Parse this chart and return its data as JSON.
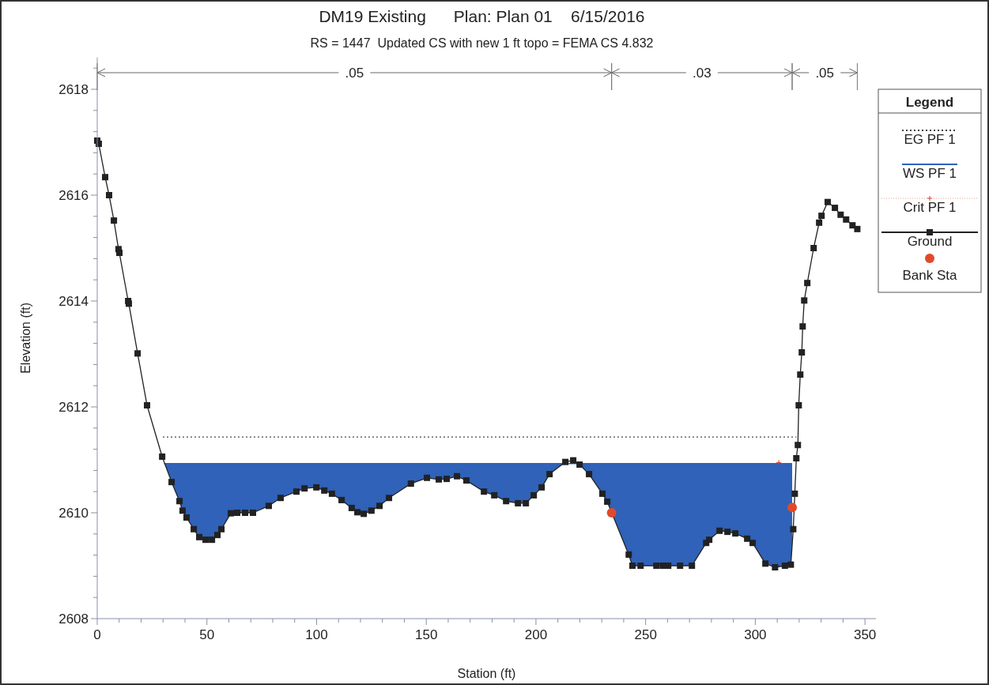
{
  "chart_data": {
    "type": "line",
    "title": "DM19 Existing      Plan: Plan 01    6/15/2016",
    "subtitle": "RS = 1447  Updated CS with new 1 ft topo = FEMA CS 4.832",
    "xlabel": "Station (ft)",
    "ylabel": "Elevation (ft)",
    "legend_title": "Legend",
    "legend": "right",
    "grid": false,
    "xlim": [
      0,
      355
    ],
    "ylim": [
      2608,
      2618.6
    ],
    "xticks": [
      0,
      {
        "value": 10,
        "label": null
      },
      {
        "value": 20,
        "label": null
      },
      {
        "value": 30,
        "label": null
      },
      {
        "value": 40,
        "label": null
      },
      50,
      {
        "value": 60,
        "label": null
      },
      {
        "value": 70,
        "label": null
      },
      {
        "value": 80,
        "label": null
      },
      {
        "value": 90,
        "label": null
      },
      100,
      {
        "value": 110,
        "label": null
      },
      {
        "value": 120,
        "label": null
      },
      {
        "value": 130,
        "label": null
      },
      {
        "value": 140,
        "label": null
      },
      150,
      {
        "value": 160,
        "label": null
      },
      {
        "value": 170,
        "label": null
      },
      {
        "value": 180,
        "label": null
      },
      {
        "value": 190,
        "label": null
      },
      200,
      {
        "value": 210,
        "label": null
      },
      {
        "value": 220,
        "label": null
      },
      {
        "value": 230,
        "label": null
      },
      {
        "value": 240,
        "label": null
      },
      250,
      {
        "value": 260,
        "label": null
      },
      {
        "value": 270,
        "label": null
      },
      {
        "value": 280,
        "label": null
      },
      {
        "value": 290,
        "label": null
      },
      300,
      {
        "value": 310,
        "label": null
      },
      {
        "value": 320,
        "label": null
      },
      {
        "value": 330,
        "label": null
      },
      {
        "value": 340,
        "label": null
      },
      350
    ],
    "yticks": [
      2608,
      {
        "value": 2608.4,
        "label": null
      },
      {
        "value": 2608.8,
        "label": null
      },
      {
        "value": 2609.2,
        "label": null
      },
      {
        "value": 2609.6,
        "label": null
      },
      2610,
      {
        "value": 2610.4,
        "label": null
      },
      {
        "value": 2610.8,
        "label": null
      },
      {
        "value": 2611.2,
        "label": null
      },
      {
        "value": 2611.6,
        "label": null
      },
      2612,
      {
        "value": 2612.4,
        "label": null
      },
      {
        "value": 2612.8,
        "label": null
      },
      {
        "value": 2613.2,
        "label": null
      },
      {
        "value": 2613.6,
        "label": null
      },
      2614,
      {
        "value": 2614.4,
        "label": null
      },
      {
        "value": 2614.8,
        "label": null
      },
      {
        "value": 2615.2,
        "label": null
      },
      {
        "value": 2615.6,
        "label": null
      },
      2616,
      {
        "value": 2616.4,
        "label": null
      },
      {
        "value": 2616.8,
        "label": null
      },
      {
        "value": 2617.2,
        "label": null
      },
      {
        "value": 2617.6,
        "label": null
      },
      2618,
      {
        "value": 2618.4,
        "label": null
      }
    ],
    "annotations": [
      ".05",
      ".03",
      ".05"
    ],
    "series": [
      {
        "name": "EG PF 1",
        "type": "line",
        "color": "#444444",
        "line_style": "dotted",
        "marker": "none",
        "x": [
          29.9,
          318.7
        ],
        "values": [
          2611.43,
          2611.43
        ]
      },
      {
        "name": "WS PF 1",
        "type": "area",
        "color": "#2f62b8",
        "line_style": "solid",
        "marker": "none",
        "x": [
          30.5,
          316.8
        ],
        "values": [
          2610.93,
          2610.93
        ]
      },
      {
        "name": "Crit PF 1",
        "type": "scatter",
        "color": "#e03c28",
        "marker": "cross",
        "x": [
          310.7
        ],
        "values": [
          2610.95
        ]
      },
      {
        "name": "Ground",
        "color": "#222222",
        "line_style": "solid",
        "marker": "square",
        "x": [
          0,
          0.7,
          3.6,
          5.4,
          7.6,
          9.7,
          10.1,
          14.1,
          14.4,
          18.4,
          22.7,
          29.6,
          33.9,
          37.5,
          38.9,
          40.7,
          44,
          46.5,
          49.4,
          52.3,
          54.8,
          56.6,
          60.9,
          63.8,
          67.4,
          71,
          78.2,
          83.6,
          90.8,
          94.5,
          99.9,
          103.5,
          107,
          111.4,
          116,
          118.6,
          121.5,
          125,
          128.7,
          133,
          143,
          150.3,
          155.7,
          159.3,
          164,
          168.3,
          176.3,
          181,
          186.4,
          191.8,
          195.4,
          199,
          202.6,
          206.2,
          213.4,
          217,
          219.9,
          224.2,
          230.3,
          232.5,
          242.3,
          244,
          247.7,
          254.9,
          257.8,
          260.3,
          265.7,
          271.1,
          277.6,
          279,
          283.7,
          287.3,
          290.9,
          296.3,
          298.8,
          304.6,
          309,
          313.5,
          316.2,
          317.3,
          318,
          318.7,
          319.4,
          319.8,
          320.5,
          321.2,
          321.6,
          322.3,
          323.7,
          326.6,
          329.1,
          330.2,
          333,
          336.3,
          338.9,
          341.4,
          344.3,
          346.5
        ],
        "values": [
          2617.03,
          2616.97,
          2616.34,
          2616.0,
          2615.52,
          2614.98,
          2614.91,
          2614.0,
          2613.95,
          2613.01,
          2612.03,
          2611.06,
          2610.58,
          2610.22,
          2610.04,
          2609.91,
          2609.69,
          2609.54,
          2609.49,
          2609.49,
          2609.58,
          2609.69,
          2609.99,
          2610.0,
          2610.0,
          2610.0,
          2610.13,
          2610.28,
          2610.4,
          2610.46,
          2610.48,
          2610.42,
          2610.36,
          2610.24,
          2610.09,
          2610.01,
          2609.98,
          2610.04,
          2610.13,
          2610.28,
          2610.55,
          2610.66,
          2610.63,
          2610.64,
          2610.69,
          2610.61,
          2610.4,
          2610.33,
          2610.22,
          2610.18,
          2610.18,
          2610.33,
          2610.48,
          2610.73,
          2610.96,
          2610.99,
          2610.91,
          2610.73,
          2610.36,
          2610.21,
          2609.21,
          2609.0,
          2609.0,
          2609.0,
          2609.0,
          2609.0,
          2609.0,
          2609.0,
          2609.43,
          2609.49,
          2609.66,
          2609.64,
          2609.61,
          2609.51,
          2609.43,
          2609.04,
          2608.97,
          2609.0,
          2609.02,
          2609.69,
          2610.36,
          2611.03,
          2611.28,
          2612.03,
          2612.61,
          2613.03,
          2613.52,
          2614.01,
          2614.34,
          2615.0,
          2615.48,
          2615.61,
          2615.87,
          2615.76,
          2615.63,
          2615.54,
          2615.43,
          2615.36
        ]
      },
      {
        "name": "Bank Sta",
        "type": "scatter",
        "color": "#e04a2a",
        "marker": "circle",
        "x": [
          234.5,
          316.8
        ],
        "values": [
          2610.0,
          2610.1
        ]
      }
    ]
  }
}
